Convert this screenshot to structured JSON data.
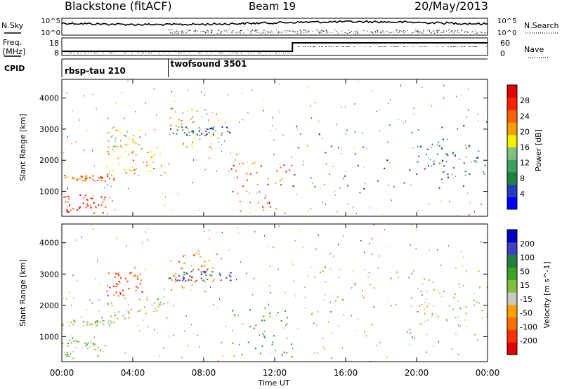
{
  "header": {
    "station_title": "Blackstone (fitACF)",
    "beam_title": "Beam 19",
    "date_title": "20/May/2013"
  },
  "status_panels": {
    "nsky_label": "N.Sky",
    "nsearch_label": "N.Search",
    "freq_label_line1": "Freq.",
    "freq_label_line2": "[MHz]",
    "nave_label": "Nave",
    "cpid_label": "CPID",
    "noise_ticks": [
      "10^5",
      "10^0"
    ],
    "freq_ticks": [
      "18",
      "8"
    ],
    "nave_ticks": [
      "60",
      "0"
    ],
    "cpid_programs": [
      {
        "name": "rbsp-tau 210",
        "start": "00:00"
      },
      {
        "name": "twofsound 3501",
        "start": "06:00"
      }
    ],
    "freq_step": {
      "time": "13:00",
      "before": 10,
      "after": 17
    }
  },
  "chart_data": [
    {
      "type": "heatmap",
      "title": "",
      "xlabel": "Time UT",
      "ylabel": "Slant Range [km]",
      "x_ticks": [
        "00:00",
        "04:00",
        "08:00",
        "12:00",
        "16:00",
        "20:00",
        "00:00"
      ],
      "x_range_hours": [
        0,
        24
      ],
      "y_ticks": [
        "1000",
        "2000",
        "3000",
        "4000"
      ],
      "ylim": [
        200,
        4600
      ],
      "colorbar": {
        "label": "Power [dB]",
        "ticks": [
          "28",
          "24",
          "20",
          "16",
          "12",
          "8",
          "4"
        ],
        "range": [
          0,
          30
        ],
        "colors": [
          "#0000ff",
          "#2040c0",
          "#208040",
          "#40a060",
          "#80c080",
          "#f0f000",
          "#f0a000",
          "#ff6000",
          "#ff2000",
          "#e00000"
        ]
      },
      "scatter_regions": [
        {
          "t0": 0.0,
          "t1": 3.0,
          "r0": 1350,
          "r1": 1550,
          "value": 22
        },
        {
          "t0": 0.0,
          "t1": 2.5,
          "r0": 300,
          "r1": 900,
          "value": 26
        },
        {
          "t0": 2.5,
          "t1": 6.0,
          "r0": 1500,
          "r1": 2300,
          "value": 20
        },
        {
          "t0": 2.5,
          "t1": 4.5,
          "r0": 2300,
          "r1": 3100,
          "value": 16
        },
        {
          "t0": 6.0,
          "t1": 9.0,
          "r0": 2400,
          "r1": 3700,
          "value": 18
        },
        {
          "t0": 6.0,
          "t1": 9.5,
          "r0": 2800,
          "r1": 3100,
          "value": 6
        },
        {
          "t0": 9.5,
          "t1": 13.0,
          "r0": 300,
          "r1": 2000,
          "value": 24
        },
        {
          "t0": 13.0,
          "t1": 24.0,
          "r0": 1000,
          "r1": 3300,
          "value": 6
        },
        {
          "t0": 20.0,
          "t1": 24.0,
          "r0": 1500,
          "r1": 2700,
          "value": 8
        }
      ]
    },
    {
      "type": "heatmap",
      "title": "",
      "xlabel": "Time UT",
      "ylabel": "Slant Range [km]",
      "x_ticks": [
        "00:00",
        "04:00",
        "08:00",
        "12:00",
        "16:00",
        "20:00",
        "00:00"
      ],
      "x_range_hours": [
        0,
        24
      ],
      "y_ticks": [
        "1000",
        "2000",
        "3000",
        "4000"
      ],
      "ylim": [
        200,
        4600
      ],
      "colorbar": {
        "label": "Velocity [m s^-1]",
        "ticks": [
          "200",
          "100",
          "50",
          "15",
          "-15",
          "-50",
          "-100",
          "-200"
        ],
        "range": [
          -250,
          250
        ],
        "colors": [
          "#e00000",
          "#ff3000",
          "#ff7000",
          "#ffa000",
          "#c8c8c0",
          "#80c040",
          "#40a020",
          "#208040",
          "#4040c0",
          "#0000c0"
        ]
      },
      "scatter_regions": [
        {
          "t0": 0.0,
          "t1": 3.0,
          "r0": 1350,
          "r1": 1550,
          "value": 0
        },
        {
          "t0": 0.0,
          "t1": 2.5,
          "r0": 300,
          "r1": 900,
          "value": 0
        },
        {
          "t0": 2.5,
          "t1": 6.0,
          "r0": 1500,
          "r1": 2300,
          "value": 0
        },
        {
          "t0": 2.5,
          "t1": 4.5,
          "r0": 2300,
          "r1": 3100,
          "value": -150
        },
        {
          "t0": 6.0,
          "t1": 9.0,
          "r0": 2400,
          "r1": 3700,
          "value": -120
        },
        {
          "t0": 6.0,
          "t1": 9.5,
          "r0": 2800,
          "r1": 3100,
          "value": 150
        },
        {
          "t0": 9.5,
          "t1": 13.0,
          "r0": 300,
          "r1": 2000,
          "value": 80
        },
        {
          "t0": 13.0,
          "t1": 24.0,
          "r0": 1000,
          "r1": 3300,
          "value": 0
        },
        {
          "t0": 20.0,
          "t1": 24.0,
          "r0": 1500,
          "r1": 2700,
          "value": 0
        }
      ]
    }
  ]
}
